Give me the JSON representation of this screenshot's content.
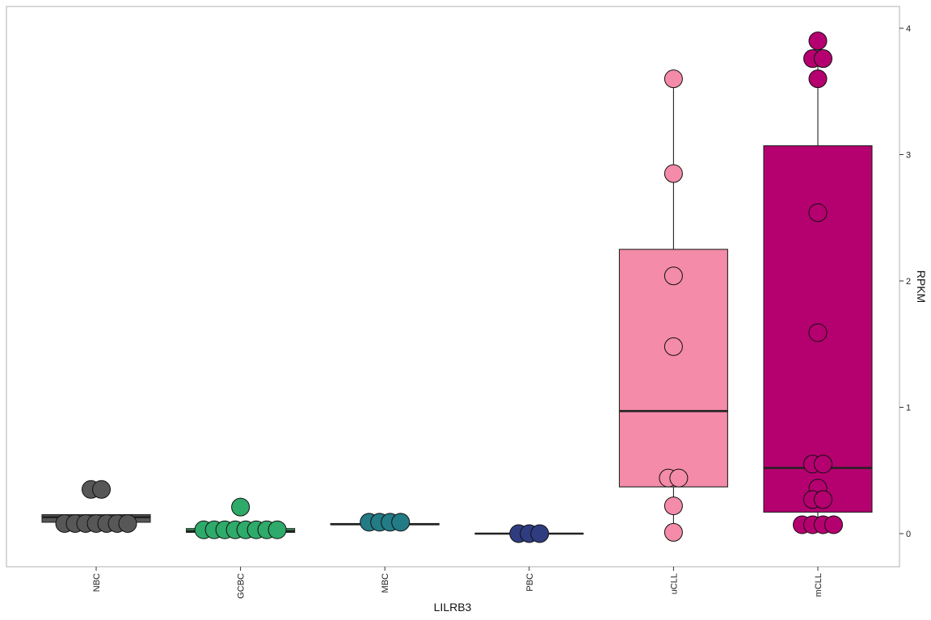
{
  "chart_data": {
    "type": "box",
    "title": "",
    "xlabel": "LILRB3",
    "ylabel": "RPKM",
    "y_axis_side": "right",
    "ylim": [
      -0.25,
      4.15
    ],
    "y_ticks": [
      0,
      1,
      2,
      3,
      4
    ],
    "grid": false,
    "legend": "none",
    "categories": [
      "NBC",
      "GCBC",
      "MBC",
      "PBC",
      "uCLL",
      "mCLL"
    ],
    "colors": {
      "NBC": "#575757",
      "GCBC": "#2eaa6a",
      "MBC": "#237b85",
      "PBC": "#2f3d80",
      "uCLL": "#f48ba8",
      "mCLL": "#b5006f"
    },
    "boxes": [
      {
        "category": "NBC",
        "q1": 0.09,
        "median": 0.13,
        "q3": 0.15,
        "whisker_low": 0.09,
        "whisker_high": 0.15
      },
      {
        "category": "GCBC",
        "q1": 0.01,
        "median": 0.02,
        "q3": 0.04,
        "whisker_low": 0.01,
        "whisker_high": 0.04
      },
      {
        "category": "MBC",
        "q1": 0.07,
        "median": 0.075,
        "q3": 0.08,
        "whisker_low": 0.07,
        "whisker_high": 0.08
      },
      {
        "category": "PBC",
        "q1": 0.0,
        "median": 0.0,
        "q3": 0.0,
        "whisker_low": 0.0,
        "whisker_high": 0.0
      },
      {
        "category": "uCLL",
        "q1": 0.37,
        "median": 0.97,
        "q3": 2.25,
        "whisker_low": 0.01,
        "whisker_high": 3.6
      },
      {
        "category": "mCLL",
        "q1": 0.17,
        "median": 0.52,
        "q3": 3.07,
        "whisker_low": 0.07,
        "whisker_high": 3.9
      }
    ],
    "points": {
      "NBC": [
        0.08,
        0.08,
        0.08,
        0.08,
        0.08,
        0.08,
        0.08,
        0.35,
        0.35
      ],
      "GCBC": [
        0.03,
        0.03,
        0.03,
        0.03,
        0.03,
        0.03,
        0.03,
        0.03,
        0.21
      ],
      "MBC": [
        0.09,
        0.09,
        0.09,
        0.09
      ],
      "PBC": [
        0.0,
        0.0,
        0.0
      ],
      "uCLL": [
        3.6,
        2.85,
        2.04,
        1.48,
        0.44,
        0.44,
        0.22,
        0.01
      ],
      "mCLL": [
        3.9,
        3.76,
        3.76,
        3.6,
        2.54,
        1.59,
        0.55,
        0.55,
        0.36,
        0.27,
        0.27,
        0.07,
        0.07,
        0.07,
        0.07
      ]
    }
  }
}
